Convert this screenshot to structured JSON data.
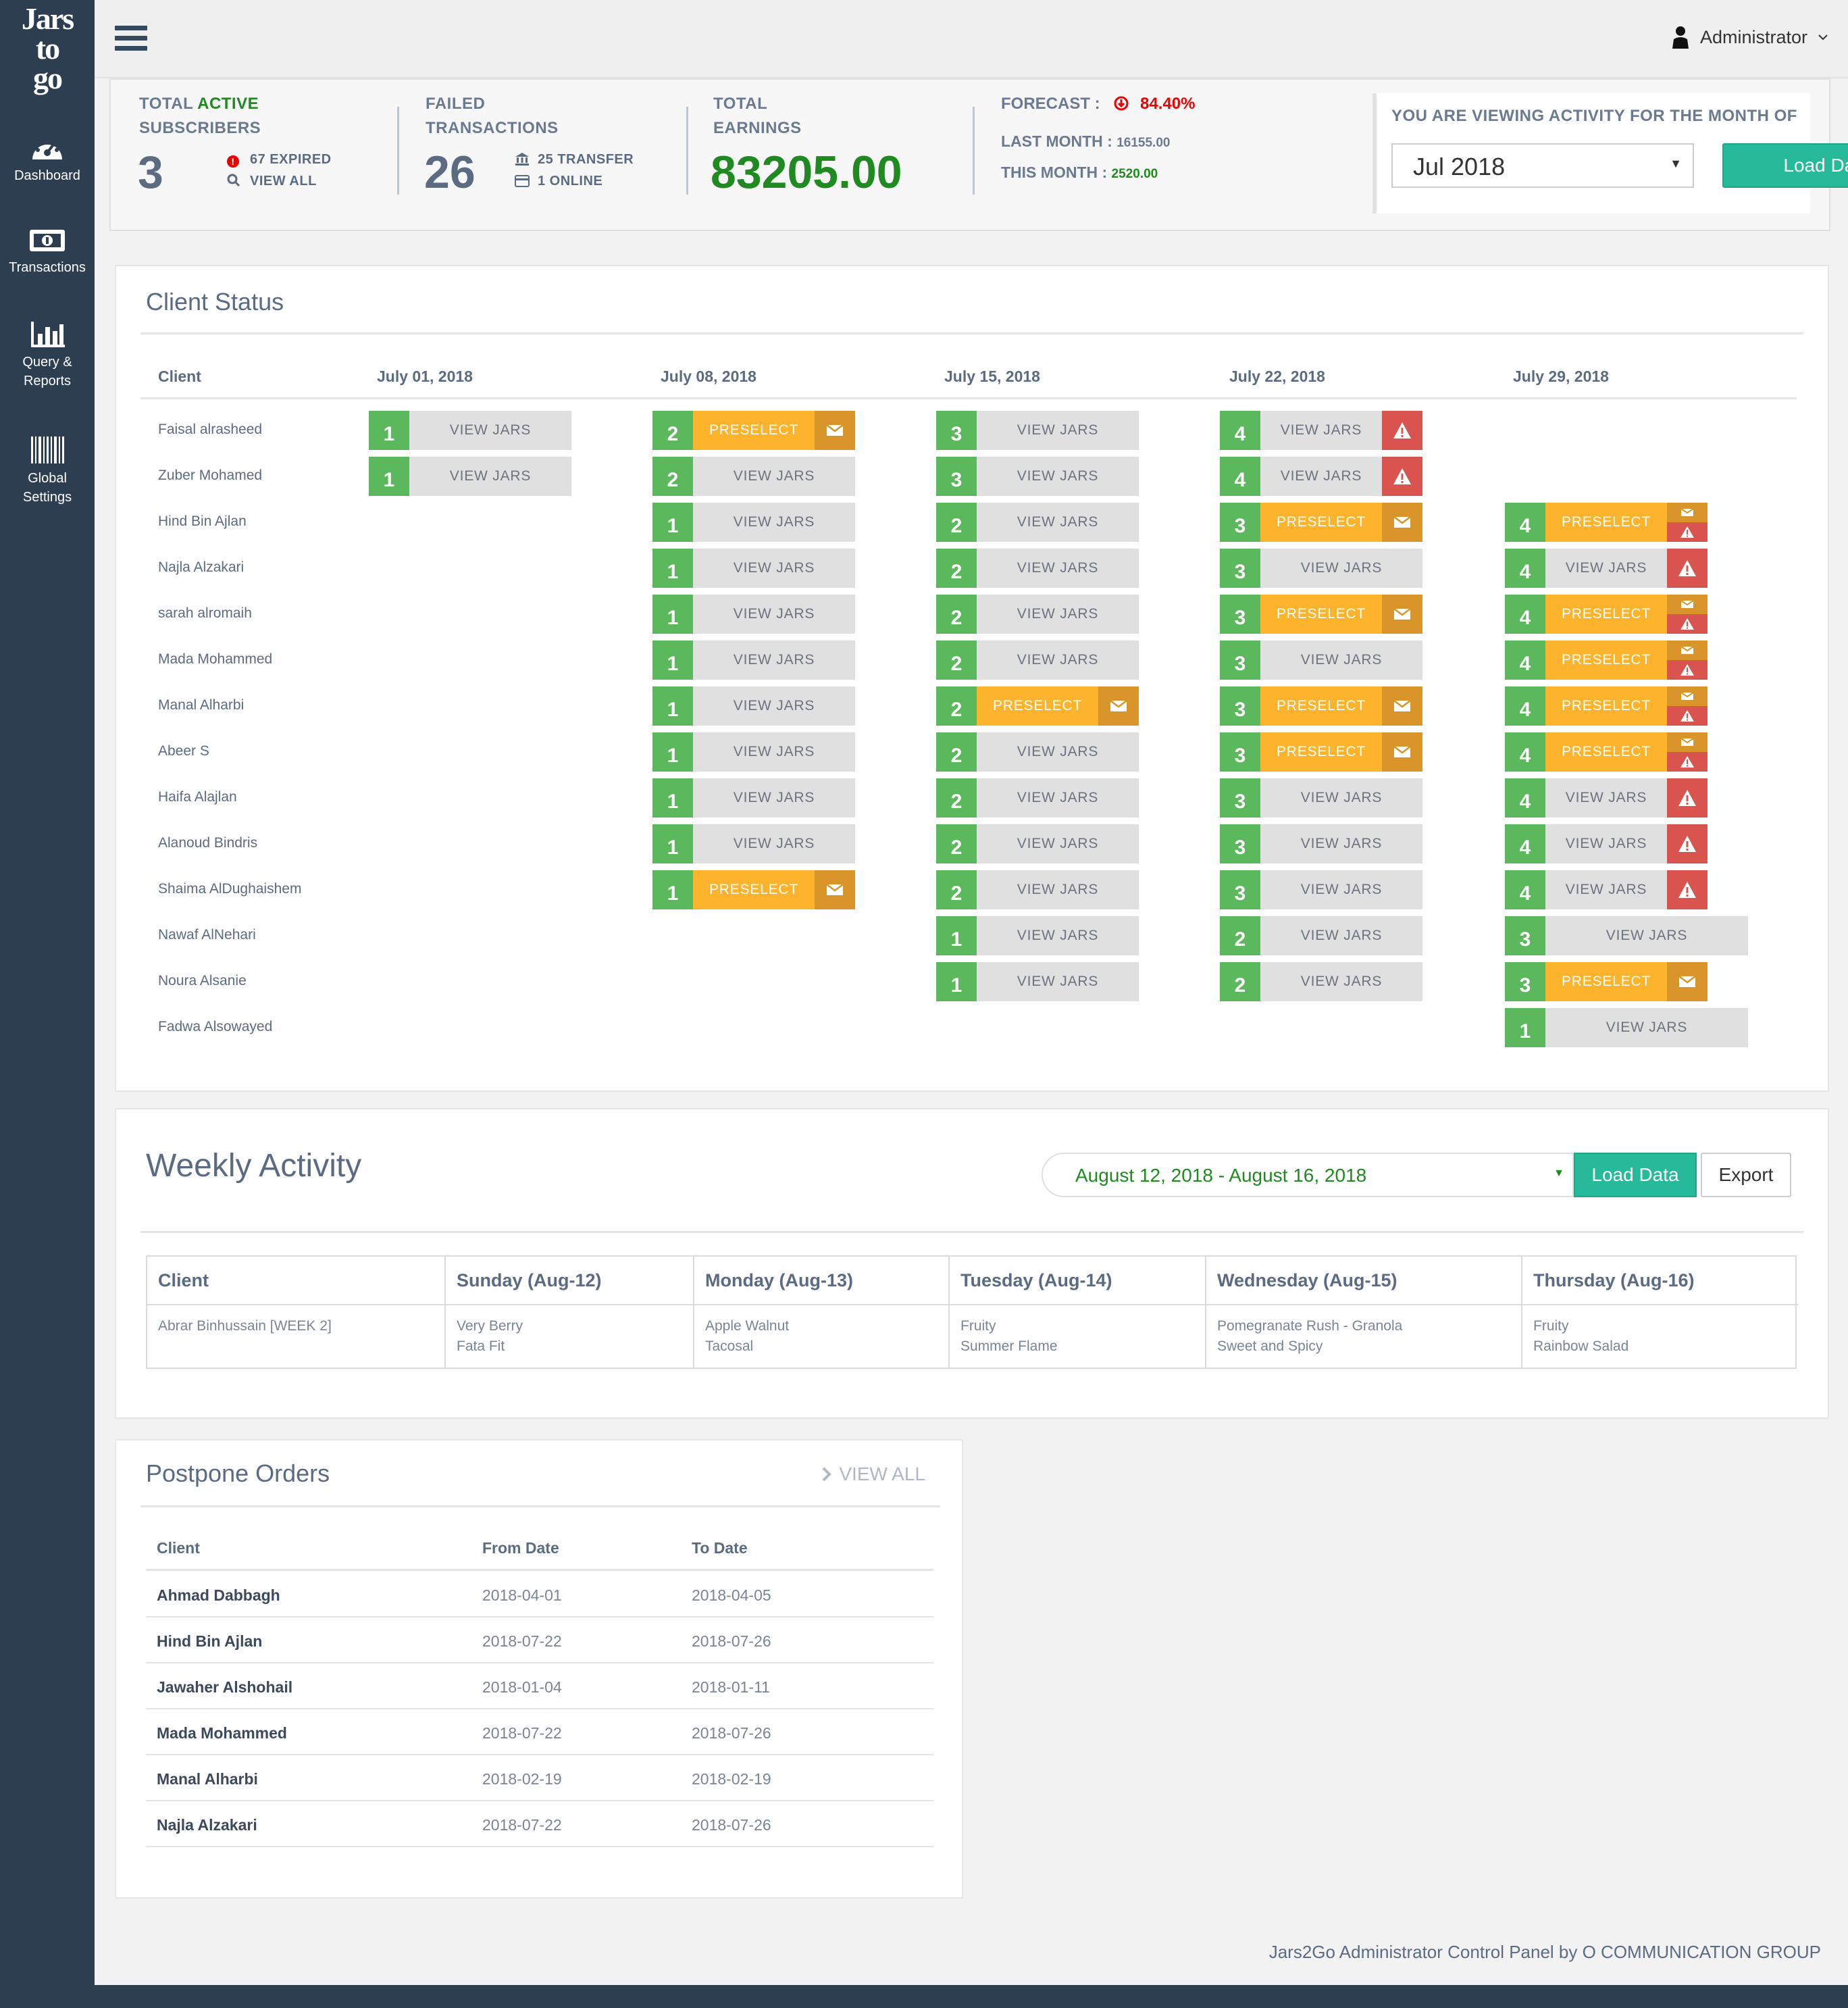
{
  "brand": {
    "logo_line1": "Jars",
    "logo_line2": "to",
    "logo_line3": "go"
  },
  "sidebar": {
    "items": [
      {
        "label": "Dashboard",
        "icon": "dashboard-icon"
      },
      {
        "label": "Transactions",
        "icon": "money-icon"
      },
      {
        "label": "Query &",
        "label2": "Reports",
        "icon": "bar-chart-icon"
      },
      {
        "label": "Global",
        "label2": "Settings",
        "icon": "barcode-icon"
      }
    ]
  },
  "header": {
    "user": "Administrator"
  },
  "stats": {
    "subscribers": {
      "label1a": "TOTAL ",
      "label1b": "ACTIVE",
      "label2": "SUBSCRIBERS",
      "value": "3",
      "expired": "67 EXPIRED",
      "view_all": "VIEW ALL"
    },
    "failed": {
      "label1": "FAILED",
      "label2": "TRANSACTIONS",
      "value": "26",
      "transfer": "25 TRANSFER",
      "online": "1 ONLINE"
    },
    "earnings": {
      "label1": "TOTAL",
      "label2": "EARNINGS",
      "value": "83205.00"
    },
    "forecast": {
      "label": "FORECAST :",
      "value": "84.40%",
      "last_label": "LAST MONTH :",
      "last_value": "16155.00",
      "this_label": "THIS MONTH :",
      "this_value": "2520.00"
    },
    "viewing": {
      "label": "YOU ARE VIEWING ACTIVITY FOR THE MONTH OF",
      "month": "Jul 2018",
      "button": "Load Data"
    }
  },
  "client_status": {
    "title": "Client Status",
    "columns": [
      "Client",
      "July 01, 2018",
      "July 08, 2018",
      "July 15, 2018",
      "July 22, 2018",
      "July 29, 2018"
    ],
    "view_label": "VIEW JARS",
    "pre_label": "PRESELECT",
    "rows": [
      {
        "name": "Faisal alrasheed",
        "cells": [
          [
            "1",
            "v"
          ],
          [
            "2",
            "p"
          ],
          [
            "3",
            "v"
          ],
          [
            "4",
            "va"
          ],
          null
        ]
      },
      {
        "name": "Zuber Mohamed",
        "cells": [
          [
            "1",
            "v"
          ],
          [
            "2",
            "v"
          ],
          [
            "3",
            "v"
          ],
          [
            "4",
            "va"
          ],
          null
        ]
      },
      {
        "name": "Hind Bin Ajlan",
        "cells": [
          null,
          [
            "1",
            "v"
          ],
          [
            "2",
            "v"
          ],
          [
            "3",
            "p"
          ],
          [
            "4",
            "ps"
          ]
        ]
      },
      {
        "name": "Najla Alzakari",
        "cells": [
          null,
          [
            "1",
            "v"
          ],
          [
            "2",
            "v"
          ],
          [
            "3",
            "v"
          ],
          [
            "4",
            "va"
          ]
        ]
      },
      {
        "name": "sarah alromaih",
        "cells": [
          null,
          [
            "1",
            "v"
          ],
          [
            "2",
            "v"
          ],
          [
            "3",
            "p"
          ],
          [
            "4",
            "ps"
          ]
        ]
      },
      {
        "name": "Mada Mohammed",
        "cells": [
          null,
          [
            "1",
            "v"
          ],
          [
            "2",
            "v"
          ],
          [
            "3",
            "v"
          ],
          [
            "4",
            "ps"
          ]
        ]
      },
      {
        "name": "Manal Alharbi",
        "cells": [
          null,
          [
            "1",
            "v"
          ],
          [
            "2",
            "p"
          ],
          [
            "3",
            "p"
          ],
          [
            "4",
            "ps"
          ]
        ]
      },
      {
        "name": "Abeer S",
        "cells": [
          null,
          [
            "1",
            "v"
          ],
          [
            "2",
            "v"
          ],
          [
            "3",
            "p"
          ],
          [
            "4",
            "ps"
          ]
        ]
      },
      {
        "name": "Haifa Alajlan",
        "cells": [
          null,
          [
            "1",
            "v"
          ],
          [
            "2",
            "v"
          ],
          [
            "3",
            "v"
          ],
          [
            "4",
            "va"
          ]
        ]
      },
      {
        "name": "Alanoud Bindris",
        "cells": [
          null,
          [
            "1",
            "v"
          ],
          [
            "2",
            "v"
          ],
          [
            "3",
            "v"
          ],
          [
            "4",
            "va"
          ]
        ]
      },
      {
        "name": "Shaima AlDughaishem",
        "cells": [
          null,
          [
            "1",
            "p"
          ],
          [
            "2",
            "v"
          ],
          [
            "3",
            "v"
          ],
          [
            "4",
            "va"
          ]
        ]
      },
      {
        "name": "Nawaf AlNehari",
        "cells": [
          null,
          null,
          [
            "1",
            "v"
          ],
          [
            "2",
            "v"
          ],
          [
            "3",
            "w"
          ]
        ]
      },
      {
        "name": "Noura Alsanie",
        "cells": [
          null,
          null,
          [
            "1",
            "v"
          ],
          [
            "2",
            "v"
          ],
          [
            "3",
            "p"
          ]
        ]
      },
      {
        "name": "Fadwa Alsowayed",
        "cells": [
          null,
          null,
          null,
          null,
          [
            "1",
            "w"
          ]
        ]
      }
    ]
  },
  "weekly": {
    "title": "Weekly Activity",
    "range": "August 12, 2018 - August 16, 2018",
    "load": "Load Data",
    "export": "Export",
    "columns": [
      "Client",
      "Sunday (Aug-12)",
      "Monday (Aug-13)",
      "Tuesday (Aug-14)",
      "Wednesday (Aug-15)",
      "Thursday (Aug-16)"
    ],
    "rows": [
      {
        "cells": [
          [
            "Abrar Binhussain [WEEK 2]"
          ],
          [
            "Very Berry",
            "Fata Fit"
          ],
          [
            "Apple Walnut",
            "Tacosal"
          ],
          [
            "Fruity",
            "Summer Flame"
          ],
          [
            "Pomegranate Rush - Granola",
            "Sweet and Spicy"
          ],
          [
            "Fruity",
            "Rainbow Salad"
          ]
        ]
      }
    ]
  },
  "postpone": {
    "title": "Postpone Orders",
    "view_all": "VIEW ALL",
    "columns": [
      "Client",
      "From Date",
      "To Date"
    ],
    "rows": [
      {
        "client": "Ahmad  Dabbagh",
        "from": "2018-04-01",
        "to": "2018-04-05"
      },
      {
        "client": "Hind Bin Ajlan",
        "from": "2018-07-22",
        "to": "2018-07-26"
      },
      {
        "client": "Jawaher Alshohail",
        "from": "2018-01-04",
        "to": "2018-01-11"
      },
      {
        "client": "Mada Mohammed",
        "from": "2018-07-22",
        "to": "2018-07-26"
      },
      {
        "client": "Manal Alharbi",
        "from": "2018-02-19",
        "to": "2018-02-19"
      },
      {
        "client": "Najla Alzakari",
        "from": "2018-07-22",
        "to": "2018-07-26"
      }
    ]
  },
  "footer": {
    "text": "Jars2Go Administrator Control Panel by O COMMUNICATION GROUP"
  },
  "colors": {
    "sidebar": "#2d3e50",
    "green": "#5cb85c",
    "orange": "#fdb32b",
    "red": "#d9534f",
    "teal": "#26b99a",
    "earnings": "#1f8a1f"
  }
}
